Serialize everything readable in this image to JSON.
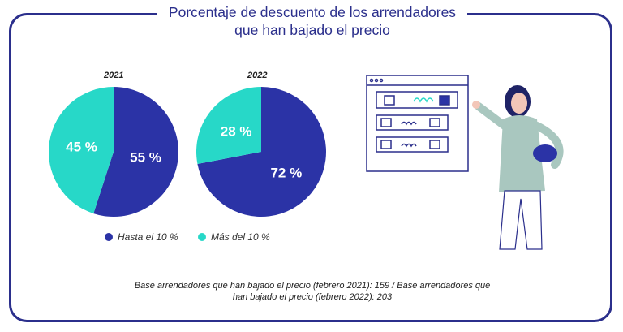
{
  "title_line1": "Porcentaje de descuento de los arrendadores",
  "title_line2": "que han bajado el precio",
  "colors": {
    "dark": "#2b33a6",
    "teal": "#27d8c8",
    "frame": "#2b2f8c"
  },
  "chart_data": [
    {
      "type": "pie",
      "title": "2021",
      "labels": [
        "Hasta el 10 %",
        "Más del 10 %"
      ],
      "values": [
        55,
        45
      ],
      "value_labels": [
        "55 %",
        "45 %"
      ]
    },
    {
      "type": "pie",
      "title": "2022",
      "labels": [
        "Hasta el 10 %",
        "Más del 10 %"
      ],
      "values": [
        72,
        28
      ],
      "value_labels": [
        "72 %",
        "28 %"
      ]
    }
  ],
  "legend": [
    {
      "label": "Hasta el 10 %",
      "color": "#2b33a6"
    },
    {
      "label": "Más del 10 %",
      "color": "#27d8c8"
    }
  ],
  "footnote_line1": "Base arrendadores que han bajado el precio (febrero 2021): 159 / Base arrendadores que",
  "footnote_line2": "han bajado el precio (febrero 2022): 203"
}
